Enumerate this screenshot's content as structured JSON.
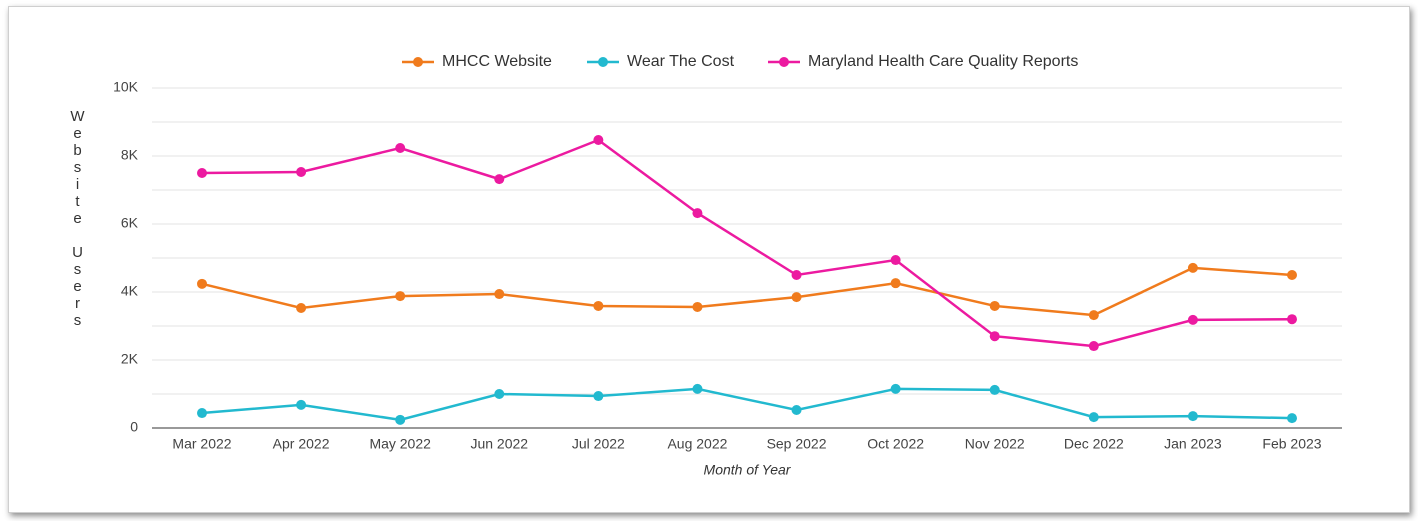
{
  "chart_data": {
    "type": "line",
    "x_label": "Month of Year",
    "y_label": "Website Users",
    "categories": [
      "Mar 2022",
      "Apr 2022",
      "May 2022",
      "Jun 2022",
      "Jul 2022",
      "Aug 2022",
      "Sep 2022",
      "Oct 2022",
      "Nov 2022",
      "Dec 2022",
      "Jan 2023",
      "Feb 2023"
    ],
    "series": [
      {
        "name": "MHCC Website",
        "color": "#f07b1d",
        "values": [
          4240,
          3530,
          3880,
          3940,
          3590,
          3560,
          3850,
          4260,
          3590,
          3320,
          4710,
          4500
        ]
      },
      {
        "name": "Wear The Cost",
        "color": "#22b9cf",
        "values": [
          440,
          680,
          240,
          1000,
          940,
          1150,
          530,
          1150,
          1120,
          320,
          350,
          290
        ]
      },
      {
        "name": "Maryland Health Care Quality Reports",
        "color": "#ec1aa0",
        "values": [
          7500,
          7530,
          8235,
          7320,
          8470,
          6320,
          4500,
          4940,
          2700,
          2410,
          3180,
          3200
        ]
      }
    ],
    "ylim": [
      0,
      10000
    ],
    "yticks": [
      0,
      {
        "value": 2000,
        "label": "2K"
      },
      {
        "value": 4000,
        "label": "4K"
      },
      {
        "value": 6000,
        "label": "6K"
      },
      {
        "value": 8000,
        "label": "8K"
      },
      {
        "value": 10000,
        "label": "10K"
      }
    ],
    "minor_grid": [
      1000,
      3000,
      5000,
      7000,
      9000
    ],
    "grid": true,
    "legend": "top"
  }
}
